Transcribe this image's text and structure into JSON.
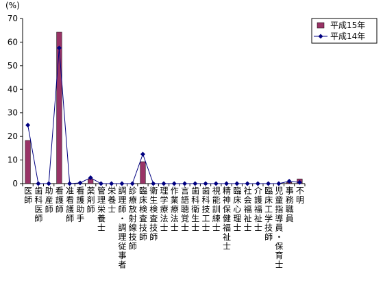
{
  "chart_data": {
    "type": "bar",
    "unit_label": "(%)",
    "categories": [
      "医師",
      "歯科医師",
      "助産師",
      "看護師",
      "准看護師",
      "看護助手",
      "薬剤師",
      "管理栄養士",
      "栄養士",
      "調理師・調理従事者",
      "診療放射線技師",
      "臨床検査技師",
      "衛生検査技師",
      "理学療法士",
      "作業療法士",
      "言語聴覚士",
      "歯科衛生士",
      "歯科技工士",
      "視能訓練士",
      "精神保健福祉士",
      "臨床心理士",
      "社会福祉士",
      "介護福祉士",
      "臨床工学技師",
      "児童指導員・保育士",
      "事務職員",
      "不明"
    ],
    "series": [
      {
        "name": "平成15年",
        "type": "bar",
        "color": "#993366",
        "values": [
          18.3,
          0,
          0,
          64.2,
          0,
          0,
          2,
          0,
          0,
          0,
          0,
          9.3,
          0,
          0,
          0,
          0,
          0,
          0,
          0,
          0,
          0,
          0,
          0,
          0,
          0,
          0.5,
          2
        ]
      },
      {
        "name": "平成14年",
        "type": "line",
        "color": "#000080",
        "values": [
          24.8,
          0,
          0,
          57.5,
          0,
          0.3,
          2.5,
          0,
          0,
          0,
          0,
          12.5,
          0,
          0,
          0,
          0,
          0,
          0,
          0,
          0,
          0,
          0,
          0,
          0,
          0,
          1,
          0.5
        ]
      }
    ],
    "ylim": [
      0,
      70
    ],
    "yticks": [
      0,
      10,
      20,
      30,
      40,
      50,
      60,
      70
    ],
    "legend": "top-right"
  }
}
